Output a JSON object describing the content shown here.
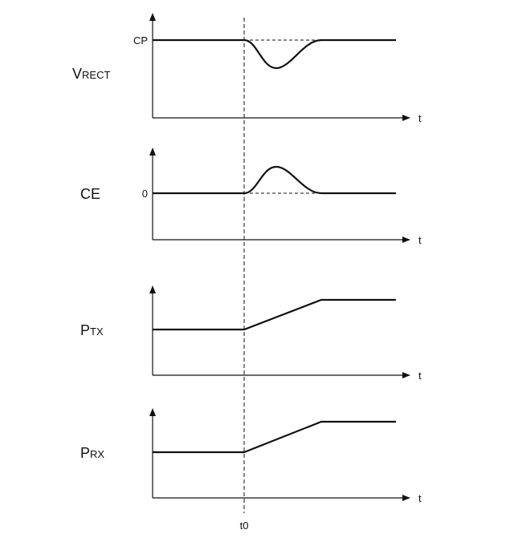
{
  "plots": [
    {
      "id": "vrect",
      "label_main": "V",
      "label_sub": "RECT",
      "level_label": "CP",
      "axis_label": "t"
    },
    {
      "id": "ce",
      "label_main": "CE",
      "label_sub": "",
      "level_label": "0",
      "axis_label": "t"
    },
    {
      "id": "ptx",
      "label_main": "P",
      "label_sub": "TX",
      "level_label": "",
      "axis_label": "t"
    },
    {
      "id": "prx",
      "label_main": "P",
      "label_sub": "RX",
      "level_label": "",
      "axis_label": "t"
    }
  ],
  "time_marker": {
    "label": "t0"
  },
  "colors": {
    "line": "#111111",
    "background": "#ffffff"
  }
}
